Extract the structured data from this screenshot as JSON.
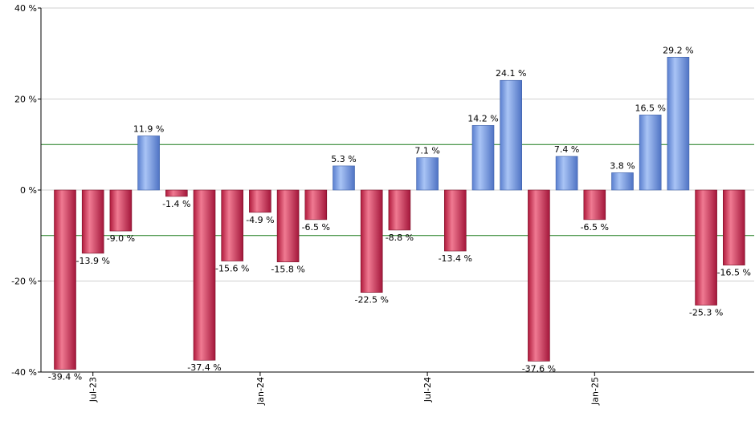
{
  "chart_data": {
    "type": "bar",
    "unit": "%",
    "ylim": [
      -40,
      40
    ],
    "yticks": [
      40,
      20,
      0,
      -20,
      -40
    ],
    "ytick_labels": [
      "40 %",
      "20 %",
      "0 %",
      "-20 %",
      "-40 %"
    ],
    "reference_lines": [
      10,
      -10
    ],
    "grid": true,
    "x_tick_labels": [
      {
        "label": "Jul-23",
        "index": 1
      },
      {
        "label": "Jan-24",
        "index": 7
      },
      {
        "label": "Jul-24",
        "index": 13
      },
      {
        "label": "Jan-25",
        "index": 19
      }
    ],
    "values": [
      -39.4,
      -13.9,
      -9.0,
      11.9,
      -1.4,
      -37.4,
      -15.6,
      -4.9,
      -15.8,
      -6.5,
      5.3,
      -22.5,
      -8.8,
      7.1,
      -13.4,
      14.2,
      24.1,
      -37.6,
      7.4,
      -6.5,
      3.8,
      16.5,
      29.2,
      -25.3,
      -16.5
    ],
    "labels": [
      "-39.4 %",
      "-13.9 %",
      "-9.0 %",
      "11.9 %",
      "-1.4 %",
      "-37.4 %",
      "-15.6 %",
      "-4.9 %",
      "-15.8 %",
      "-6.5 %",
      "5.3 %",
      "-22.5 %",
      "-8.8 %",
      "7.1 %",
      "-13.4 %",
      "14.2 %",
      "24.1 %",
      "-37.6 %",
      "7.4 %",
      "-6.5 %",
      "3.8 %",
      "16.5 %",
      "29.2 %",
      "-25.3 %",
      "-16.5 %"
    ],
    "colors": {
      "positive": "#6f95dd",
      "negative": "#c8284a",
      "reference_line": "#1a7a1a",
      "grid": "#d0d0d0",
      "axis": "#000000"
    }
  }
}
